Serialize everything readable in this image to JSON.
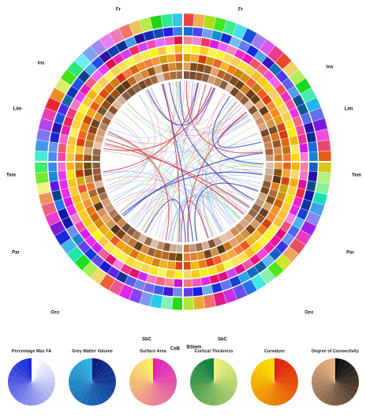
{
  "lobes": [
    "Fr",
    "Fr",
    "Ins",
    "Ins",
    "Lim",
    "Lim",
    "Tem",
    "Tem",
    "Par",
    "Par",
    "Occ",
    "Occ",
    "SbC",
    "SbC",
    "CeB",
    "BStem"
  ],
  "legends": [
    {
      "title": "Percentage Max FA"
    },
    {
      "title": "Grey Matter Volume"
    },
    {
      "title": "Surface Area"
    },
    {
      "title": "Cortical Thickness"
    },
    {
      "title": "Curvature"
    },
    {
      "title": "Degree of Connectivity"
    }
  ]
}
